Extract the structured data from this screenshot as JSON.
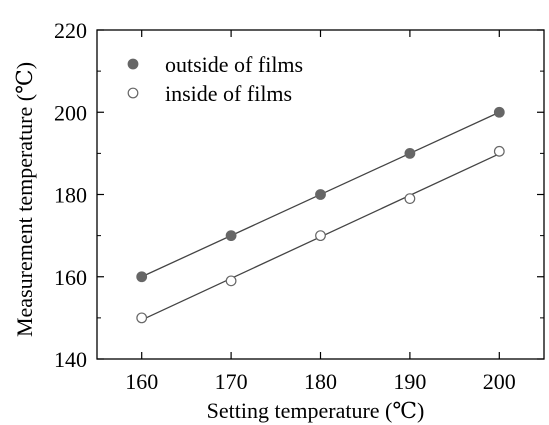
{
  "chart_data": {
    "type": "scatter",
    "xlabel": "Setting temperature (℃)",
    "ylabel": "Measurement temperature (℃)",
    "xlim": [
      155,
      205
    ],
    "ylim": [
      140,
      220
    ],
    "x_ticks": [
      160,
      170,
      180,
      190,
      200
    ],
    "y_ticks": [
      140,
      160,
      180,
      200,
      220
    ],
    "grid": false,
    "legend_position": "top-left",
    "series": [
      {
        "name": "outside of films",
        "marker": "filled-circle",
        "color": "#666666",
        "x": [
          160,
          170,
          180,
          190,
          200
        ],
        "y": [
          160.0,
          170.0,
          180.0,
          190.0,
          200.0
        ],
        "fit_line": true
      },
      {
        "name": "inside of films",
        "marker": "open-circle",
        "color": "#666666",
        "x": [
          160,
          170,
          180,
          190,
          200
        ],
        "y": [
          150.0,
          159.0,
          170.0,
          179.0,
          190.5
        ],
        "fit_line": true
      }
    ]
  }
}
